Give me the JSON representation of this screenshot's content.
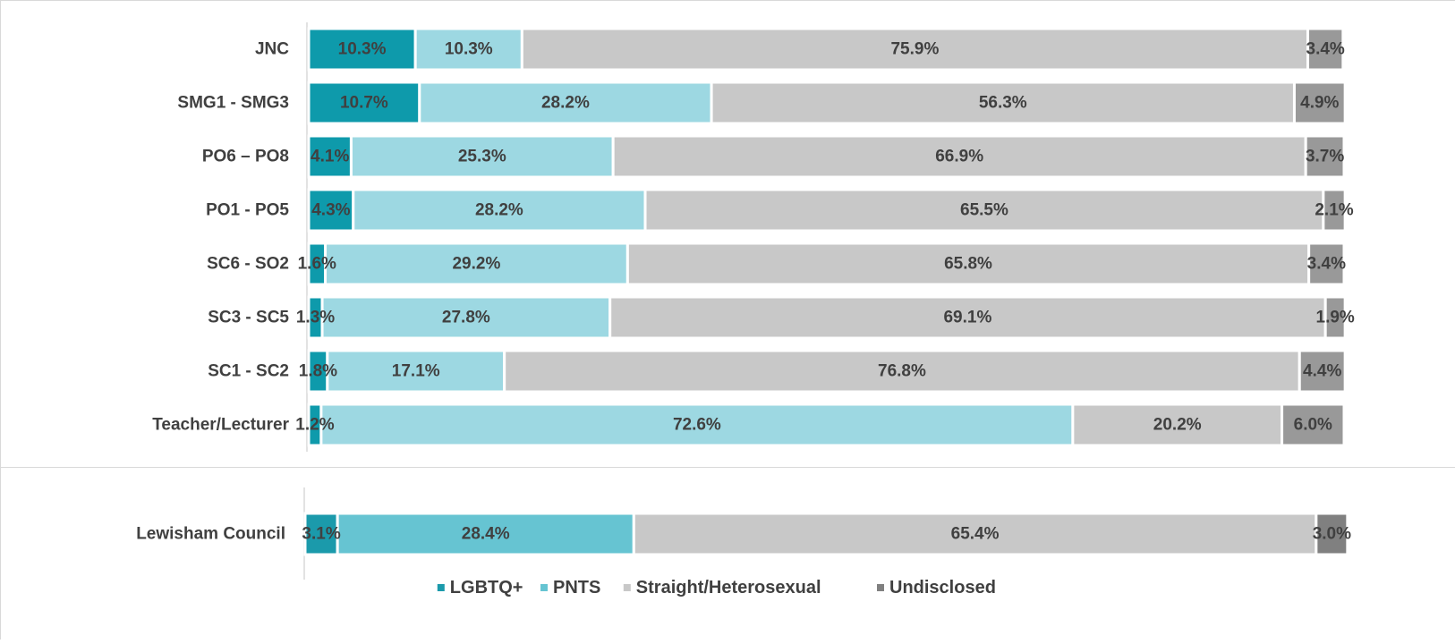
{
  "chart_data": [
    {
      "type": "stacked-bar-horizontal",
      "categories": [
        "JNC",
        "SMG1 - SMG3",
        "PO6 – PO8",
        "PO1 - PO5",
        "SC6 - SO2",
        "SC3 - SC5",
        "SC1 - SC2",
        "Teacher/Lecturer"
      ],
      "xlim": [
        0,
        100
      ],
      "legend": false,
      "series": [
        {
          "color": "#0e9aab",
          "values": [
            10.3,
            10.7,
            4.1,
            4.3,
            1.6,
            1.3,
            1.8,
            1.2
          ],
          "value_labels": [
            "10.3%",
            "10.7%",
            "4.1%",
            "4.3%",
            "1.6%",
            "1.3%",
            "1.8%",
            "1.2%"
          ]
        },
        {
          "color": "#9dd8e2",
          "values": [
            10.3,
            28.2,
            25.3,
            28.2,
            29.2,
            27.8,
            17.1,
            72.6
          ],
          "value_labels": [
            "10.3%",
            "28.2%",
            "25.3%",
            "28.2%",
            "29.2%",
            "27.8%",
            "17.1%",
            "72.6%"
          ]
        },
        {
          "color": "#c8c8c8",
          "values": [
            75.9,
            56.3,
            66.9,
            65.5,
            65.8,
            69.1,
            76.8,
            20.2
          ],
          "value_labels": [
            "75.9%",
            "56.3%",
            "66.9%",
            "65.5%",
            "65.8%",
            "69.1%",
            "76.8%",
            "20.2%"
          ]
        },
        {
          "color": "#999999",
          "values": [
            3.4,
            4.9,
            3.7,
            2.1,
            3.4,
            1.9,
            4.4,
            6.0
          ],
          "value_labels": [
            "3.4%",
            "4.9%",
            "3.7%",
            "2.1%",
            "3.4%",
            "1.9%",
            "4.4%",
            "6.0%"
          ]
        }
      ]
    },
    {
      "type": "stacked-bar-horizontal",
      "categories": [
        "Lewisham Council"
      ],
      "xlim": [
        0,
        100
      ],
      "legend": true,
      "series": [
        {
          "name": "LGBTQ+",
          "color": "#1b9aab",
          "values": [
            3.1
          ],
          "value_labels": [
            "3.1%"
          ]
        },
        {
          "name": "PNTS",
          "color": "#66c4d2",
          "values": [
            28.4
          ],
          "value_labels": [
            "28.4%"
          ]
        },
        {
          "name": "Straight/Heterosexual",
          "color": "#c8c8c8",
          "values": [
            65.4
          ],
          "value_labels": [
            "65.4%"
          ]
        },
        {
          "name": "Undisclosed",
          "color": "#808080",
          "values": [
            3.0
          ],
          "value_labels": [
            "3.0%"
          ]
        }
      ]
    }
  ]
}
